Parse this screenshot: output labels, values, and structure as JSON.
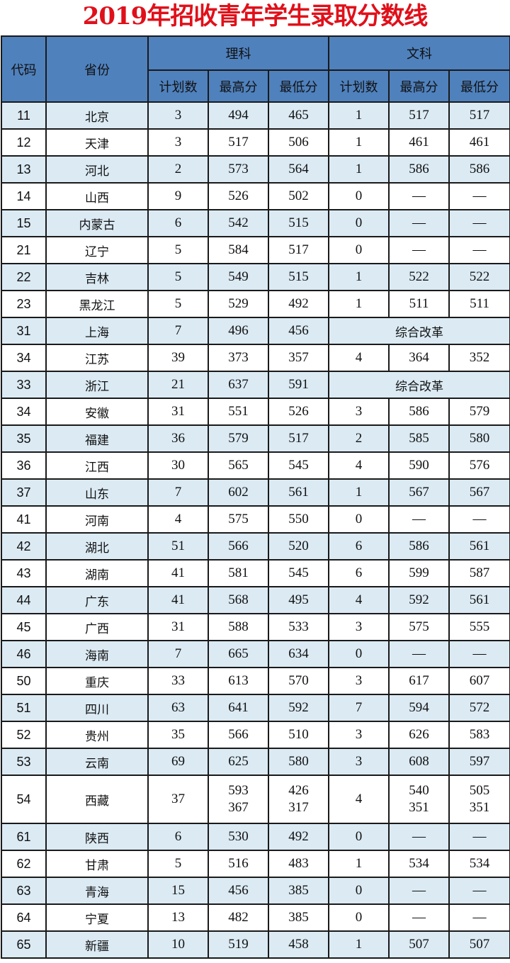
{
  "title": "2019年招收青年学生录取分数线",
  "header": {
    "code": "代码",
    "province": "省份",
    "science": "理科",
    "arts": "文科",
    "sub": [
      "计划数",
      "最高分",
      "最低分",
      "计划数",
      "最高分",
      "最低分"
    ]
  },
  "rows": [
    [
      "11",
      "北京",
      "3",
      "494",
      "465",
      "1",
      "517",
      "517"
    ],
    [
      "12",
      "天津",
      "3",
      "517",
      "506",
      "1",
      "461",
      "461"
    ],
    [
      "13",
      "河北",
      "2",
      "573",
      "564",
      "1",
      "586",
      "586"
    ],
    [
      "14",
      "山西",
      "9",
      "526",
      "502",
      "0",
      "—",
      "—"
    ],
    [
      "15",
      "内蒙古",
      "6",
      "542",
      "515",
      "0",
      "—",
      "—"
    ],
    [
      "21",
      "辽宁",
      "5",
      "584",
      "517",
      "0",
      "—",
      "—"
    ],
    [
      "22",
      "吉林",
      "5",
      "549",
      "515",
      "1",
      "522",
      "522"
    ],
    [
      "23",
      "黑龙江",
      "5",
      "529",
      "492",
      "1",
      "511",
      "511"
    ],
    [
      "31",
      "上海",
      "7",
      "496",
      "456",
      "综合改革"
    ],
    [
      "34",
      "江苏",
      "39",
      "373",
      "357",
      "4",
      "364",
      "352"
    ],
    [
      "33",
      "浙江",
      "21",
      "637",
      "591",
      "综合改革"
    ],
    [
      "34",
      "安徽",
      "31",
      "551",
      "526",
      "3",
      "586",
      "579"
    ],
    [
      "35",
      "福建",
      "36",
      "579",
      "517",
      "2",
      "585",
      "580"
    ],
    [
      "36",
      "江西",
      "30",
      "565",
      "545",
      "4",
      "590",
      "576"
    ],
    [
      "37",
      "山东",
      "7",
      "602",
      "561",
      "1",
      "567",
      "567"
    ],
    [
      "41",
      "河南",
      "4",
      "575",
      "550",
      "0",
      "—",
      "—"
    ],
    [
      "42",
      "湖北",
      "51",
      "566",
      "520",
      "6",
      "586",
      "561"
    ],
    [
      "43",
      "湖南",
      "41",
      "581",
      "545",
      "6",
      "599",
      "587"
    ],
    [
      "44",
      "广东",
      "41",
      "568",
      "495",
      "4",
      "592",
      "561"
    ],
    [
      "45",
      "广西",
      "31",
      "588",
      "533",
      "3",
      "575",
      "555"
    ],
    [
      "46",
      "海南",
      "7",
      "665",
      "634",
      "0",
      "—",
      "—"
    ],
    [
      "50",
      "重庆",
      "33",
      "613",
      "570",
      "3",
      "617",
      "607"
    ],
    [
      "51",
      "四川",
      "63",
      "641",
      "592",
      "7",
      "594",
      "572"
    ],
    [
      "52",
      "贵州",
      "35",
      "566",
      "510",
      "3",
      "626",
      "583"
    ],
    [
      "53",
      "云南",
      "69",
      "625",
      "580",
      "3",
      "608",
      "597"
    ],
    [
      "54",
      "西藏",
      "37",
      "593\n367",
      "426\n317",
      "4",
      "540\n351",
      "505\n351"
    ],
    [
      "61",
      "陕西",
      "6",
      "530",
      "492",
      "0",
      "—",
      "—"
    ],
    [
      "62",
      "甘肃",
      "5",
      "516",
      "483",
      "1",
      "534",
      "534"
    ],
    [
      "63",
      "青海",
      "15",
      "456",
      "385",
      "0",
      "—",
      "—"
    ],
    [
      "64",
      "宁夏",
      "13",
      "482",
      "385",
      "0",
      "—",
      "—"
    ],
    [
      "65",
      "新疆",
      "10",
      "519",
      "458",
      "1",
      "507",
      "507"
    ]
  ]
}
